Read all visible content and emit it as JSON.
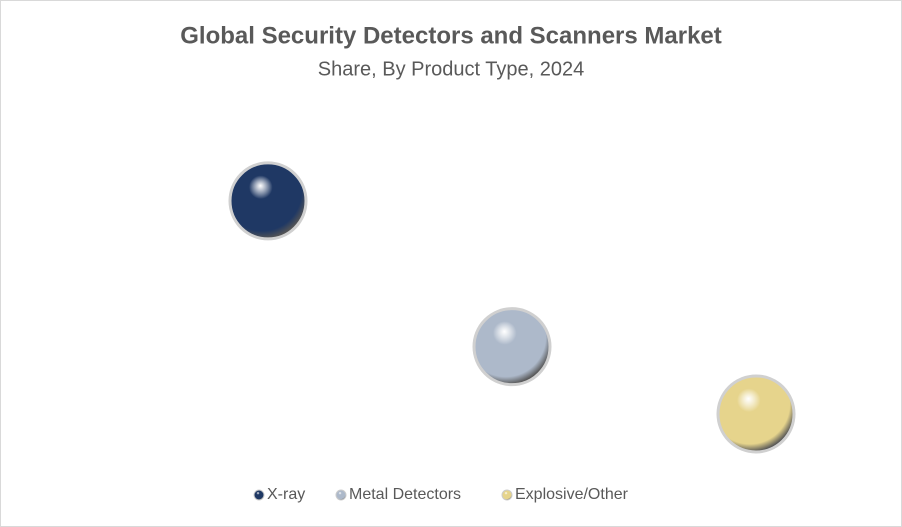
{
  "chart_data": {
    "type": "bubble",
    "title": "Global Security Detectors and Scanners Market",
    "subtitle": "Share, By Product Type, 2024",
    "xlim": [
      0,
      3.5
    ],
    "ylim": [
      20,
      53
    ],
    "legend": "bottom",
    "series": [
      {
        "name": "X-ray",
        "color": "#1f3864",
        "x": [
          1
        ],
        "values": [
          44
        ]
      },
      {
        "name": "Metal Detectors",
        "color": "#adb9ca",
        "x": [
          2
        ],
        "values": [
          31
        ]
      },
      {
        "name": "Explosive/Other",
        "color": "#e6d48c",
        "x": [
          3
        ],
        "values": [
          25
        ]
      }
    ]
  }
}
